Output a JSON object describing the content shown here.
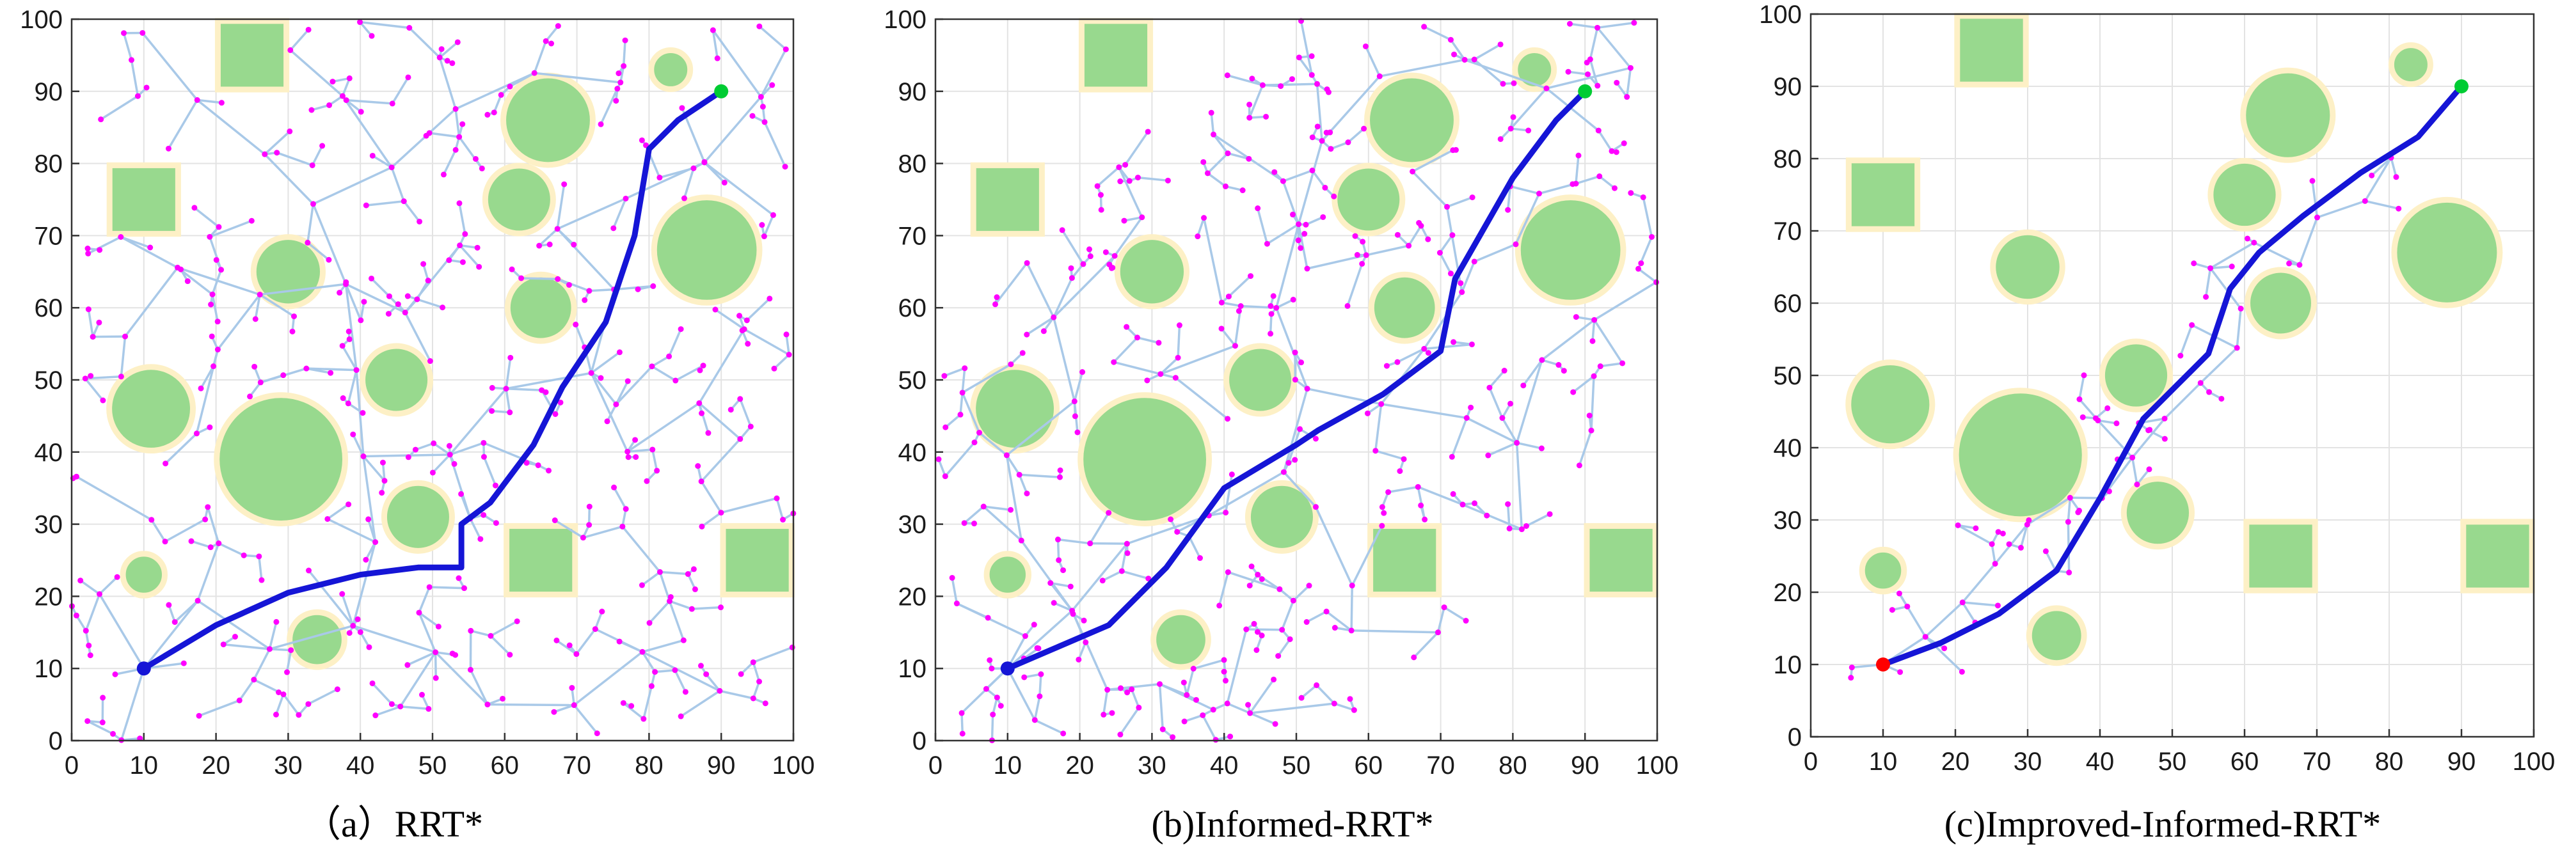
{
  "colors": {
    "obstacle_fill": "#98d98e",
    "obstacle_border": "#fdf0c6",
    "tree_edge": "#a9c9e8",
    "tree_node": "#ff00ff",
    "path": "#1515d6",
    "start": "#ff0000",
    "goal": "#00cc33",
    "grid": "#e3e3e3",
    "axis": "#333333"
  },
  "chart_data": [
    {
      "type": "scatter",
      "caption": "（a）RRT*",
      "xlim": [
        0,
        100
      ],
      "ylim": [
        0,
        100
      ],
      "xticks": [
        0,
        10,
        20,
        30,
        40,
        50,
        60,
        70,
        80,
        90,
        100
      ],
      "yticks": [
        0,
        10,
        20,
        30,
        40,
        50,
        60,
        70,
        80,
        90,
        100
      ],
      "grid": true,
      "start": [
        10,
        10
      ],
      "goal": [
        90,
        90
      ],
      "obstacles": {
        "circles": [
          {
            "cx": 83,
            "cy": 93,
            "r": 2.7
          },
          {
            "cx": 66,
            "cy": 86,
            "r": 6.2
          },
          {
            "cx": 88,
            "cy": 68,
            "r": 7.3
          },
          {
            "cx": 62,
            "cy": 75,
            "r": 4.7
          },
          {
            "cx": 30,
            "cy": 65,
            "r": 4.8
          },
          {
            "cx": 65,
            "cy": 60,
            "r": 4.6
          },
          {
            "cx": 45,
            "cy": 50,
            "r": 4.7
          },
          {
            "cx": 11,
            "cy": 46,
            "r": 5.8
          },
          {
            "cx": 29,
            "cy": 39,
            "r": 8.9
          },
          {
            "cx": 48,
            "cy": 31,
            "r": 4.7
          },
          {
            "cx": 10,
            "cy": 23,
            "r": 2.9
          },
          {
            "cx": 34,
            "cy": 14,
            "r": 3.8
          }
        ],
        "squares": [
          {
            "cx": 25,
            "cy": 95,
            "s": 9.5
          },
          {
            "cx": 10,
            "cy": 75,
            "s": 9.5
          },
          {
            "cx": 65,
            "cy": 25,
            "s": 9.5
          },
          {
            "cx": 95,
            "cy": 25,
            "s": 9.5
          }
        ]
      },
      "tree": {
        "nodes": 380,
        "seed": 11,
        "mode": "full"
      },
      "path": [
        [
          10,
          10
        ],
        [
          20,
          16
        ],
        [
          30,
          20.5
        ],
        [
          40,
          23
        ],
        [
          48,
          24
        ],
        [
          54,
          24
        ],
        [
          54,
          30
        ],
        [
          58,
          33
        ],
        [
          64,
          41
        ],
        [
          68,
          49
        ],
        [
          74,
          58
        ],
        [
          78,
          70
        ],
        [
          80,
          82
        ],
        [
          84,
          86
        ],
        [
          90,
          90
        ]
      ]
    },
    {
      "type": "scatter",
      "caption": "(b)Informed-RRT*",
      "xlim": [
        0,
        100
      ],
      "ylim": [
        0,
        100
      ],
      "xticks": [
        0,
        10,
        20,
        30,
        40,
        50,
        60,
        70,
        80,
        90,
        100
      ],
      "yticks": [
        0,
        10,
        20,
        30,
        40,
        50,
        60,
        70,
        80,
        90,
        100
      ],
      "grid": true,
      "start": [
        10,
        10
      ],
      "goal": [
        90,
        90
      ],
      "obstacles": {
        "circles": [
          {
            "cx": 83,
            "cy": 93,
            "r": 2.7
          },
          {
            "cx": 66,
            "cy": 86,
            "r": 6.2
          },
          {
            "cx": 88,
            "cy": 68,
            "r": 7.3
          },
          {
            "cx": 60,
            "cy": 75,
            "r": 4.7
          },
          {
            "cx": 30,
            "cy": 65,
            "r": 4.8
          },
          {
            "cx": 65,
            "cy": 60,
            "r": 4.6
          },
          {
            "cx": 45,
            "cy": 50,
            "r": 4.7
          },
          {
            "cx": 11,
            "cy": 46,
            "r": 5.8
          },
          {
            "cx": 29,
            "cy": 39,
            "r": 8.9
          },
          {
            "cx": 48,
            "cy": 31,
            "r": 4.7
          },
          {
            "cx": 10,
            "cy": 23,
            "r": 2.9
          },
          {
            "cx": 34,
            "cy": 14,
            "r": 3.8
          }
        ],
        "squares": [
          {
            "cx": 25,
            "cy": 95,
            "s": 9.5
          },
          {
            "cx": 10,
            "cy": 75,
            "s": 9.5
          },
          {
            "cx": 65,
            "cy": 25,
            "s": 9.5
          },
          {
            "cx": 95,
            "cy": 25,
            "s": 9.5
          }
        ]
      },
      "tree": {
        "nodes": 360,
        "seed": 23,
        "mode": "informed"
      },
      "path": [
        [
          10,
          10
        ],
        [
          24,
          16
        ],
        [
          32,
          24
        ],
        [
          40,
          35
        ],
        [
          50,
          41
        ],
        [
          53,
          43
        ],
        [
          62,
          48
        ],
        [
          70,
          54
        ],
        [
          72,
          64
        ],
        [
          80,
          78
        ],
        [
          86,
          86
        ],
        [
          90,
          90
        ]
      ]
    },
    {
      "type": "scatter",
      "caption": "(c)Improved-Informed-RRT*",
      "xlim": [
        0,
        100
      ],
      "ylim": [
        0,
        100
      ],
      "xticks": [
        0,
        10,
        20,
        30,
        40,
        50,
        60,
        70,
        80,
        90,
        100
      ],
      "yticks": [
        0,
        10,
        20,
        30,
        40,
        50,
        60,
        70,
        80,
        90,
        100
      ],
      "grid": true,
      "start": [
        10,
        10
      ],
      "goal": [
        90,
        90
      ],
      "obstacles": {
        "circles": [
          {
            "cx": 83,
            "cy": 93,
            "r": 2.7
          },
          {
            "cx": 66,
            "cy": 86,
            "r": 6.2
          },
          {
            "cx": 88,
            "cy": 67,
            "r": 7.3
          },
          {
            "cx": 60,
            "cy": 75,
            "r": 4.7
          },
          {
            "cx": 30,
            "cy": 65,
            "r": 4.8
          },
          {
            "cx": 65,
            "cy": 60,
            "r": 4.6
          },
          {
            "cx": 45,
            "cy": 50,
            "r": 4.7
          },
          {
            "cx": 11,
            "cy": 46,
            "r": 5.8
          },
          {
            "cx": 29,
            "cy": 39,
            "r": 8.9
          },
          {
            "cx": 48,
            "cy": 31,
            "r": 4.7
          },
          {
            "cx": 10,
            "cy": 23,
            "r": 2.9
          },
          {
            "cx": 34,
            "cy": 14,
            "r": 3.8
          }
        ],
        "squares": [
          {
            "cx": 25,
            "cy": 95,
            "s": 9.5
          },
          {
            "cx": 10,
            "cy": 75,
            "s": 9.5
          },
          {
            "cx": 65,
            "cy": 25,
            "s": 9.5
          },
          {
            "cx": 95,
            "cy": 25,
            "s": 9.5
          }
        ]
      },
      "tree": {
        "nodes": 70,
        "seed": 37,
        "mode": "corridor"
      },
      "path": [
        [
          10,
          10
        ],
        [
          18,
          13
        ],
        [
          26,
          17
        ],
        [
          34,
          23
        ],
        [
          40,
          33
        ],
        [
          46,
          44
        ],
        [
          50,
          48
        ],
        [
          55,
          53
        ],
        [
          58,
          62
        ],
        [
          62,
          67
        ],
        [
          68,
          72
        ],
        [
          76,
          78
        ],
        [
          84,
          83
        ],
        [
          90,
          90
        ]
      ]
    }
  ]
}
